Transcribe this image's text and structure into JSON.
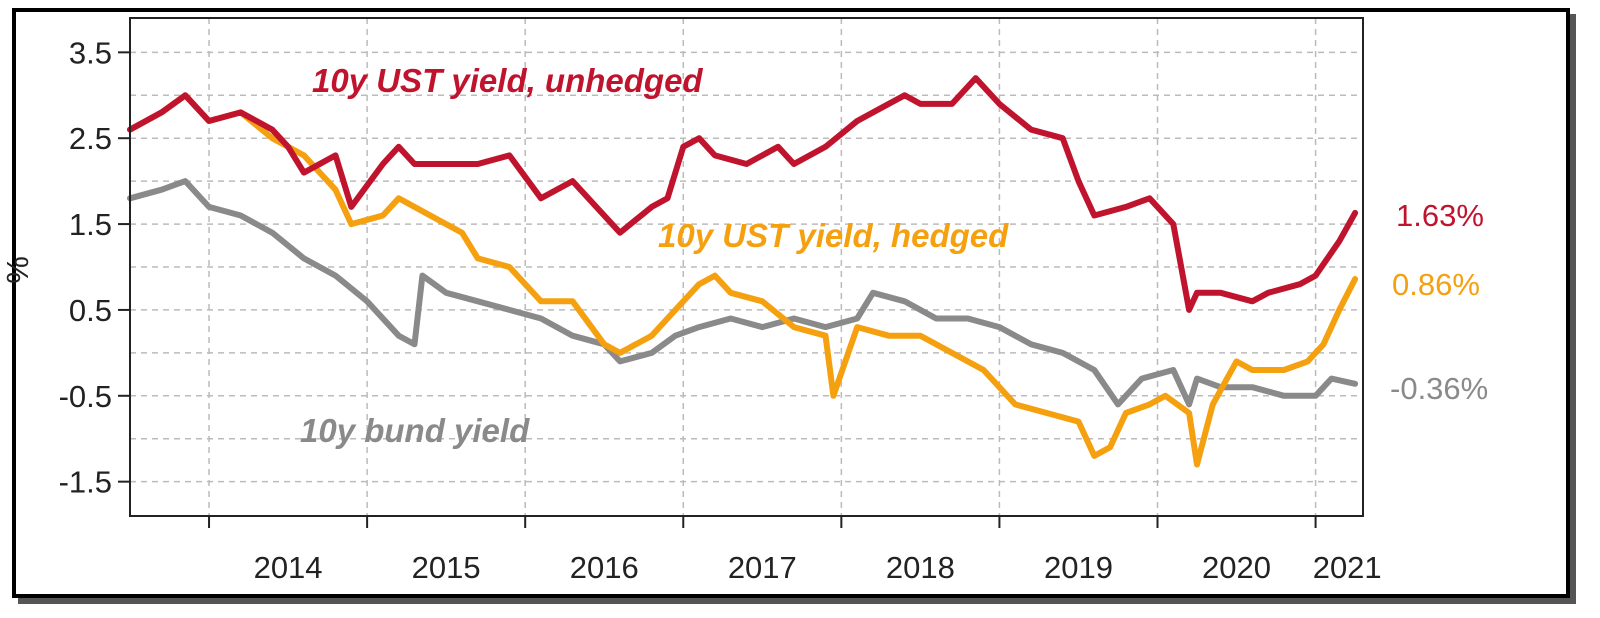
{
  "chart_data": {
    "type": "line",
    "title": "",
    "xlabel": "",
    "ylabel": "%",
    "ylim": [
      -1.9,
      3.9
    ],
    "xlim": [
      2013.5,
      2021.3
    ],
    "grid": true,
    "y_ticks": [
      "3.5",
      "2.5",
      "1.5",
      "0.5",
      "-0.5",
      "-1.5"
    ],
    "x_ticks": [
      "2014",
      "2015",
      "2016",
      "2017",
      "2018",
      "2019",
      "2020",
      "2021"
    ],
    "series": [
      {
        "name": "10y UST yield, unhedged",
        "color": "#c0142e",
        "end_label": "1.63%",
        "x": [
          2013.5,
          2013.7,
          2013.85,
          2014.0,
          2014.2,
          2014.4,
          2014.5,
          2014.6,
          2014.8,
          2014.9,
          2015.1,
          2015.2,
          2015.3,
          2015.5,
          2015.7,
          2015.9,
          2016.1,
          2016.3,
          2016.5,
          2016.6,
          2016.8,
          2016.9,
          2017.0,
          2017.1,
          2017.2,
          2017.4,
          2017.6,
          2017.7,
          2017.9,
          2018.1,
          2018.2,
          2018.4,
          2018.5,
          2018.7,
          2018.85,
          2019.0,
          2019.2,
          2019.4,
          2019.5,
          2019.6,
          2019.8,
          2019.95,
          2020.1,
          2020.2,
          2020.25,
          2020.4,
          2020.6,
          2020.7,
          2020.9,
          2021.0,
          2021.15,
          2021.25
        ],
        "y": [
          2.6,
          2.8,
          3.0,
          2.7,
          2.8,
          2.6,
          2.4,
          2.1,
          2.3,
          1.7,
          2.2,
          2.4,
          2.2,
          2.2,
          2.2,
          2.3,
          1.8,
          2.0,
          1.6,
          1.4,
          1.7,
          1.8,
          2.4,
          2.5,
          2.3,
          2.2,
          2.4,
          2.2,
          2.4,
          2.7,
          2.8,
          3.0,
          2.9,
          2.9,
          3.2,
          2.9,
          2.6,
          2.5,
          2.0,
          1.6,
          1.7,
          1.8,
          1.5,
          0.5,
          0.7,
          0.7,
          0.6,
          0.7,
          0.8,
          0.9,
          1.3,
          1.63
        ]
      },
      {
        "name": "10y UST yield, hedged",
        "color": "#f5a00f",
        "end_label": "0.86%",
        "x": [
          2013.5,
          2013.7,
          2013.85,
          2014.0,
          2014.2,
          2014.4,
          2014.6,
          2014.8,
          2014.9,
          2015.1,
          2015.2,
          2015.4,
          2015.6,
          2015.7,
          2015.9,
          2016.1,
          2016.3,
          2016.5,
          2016.6,
          2016.8,
          2016.95,
          2017.1,
          2017.2,
          2017.3,
          2017.5,
          2017.7,
          2017.9,
          2017.95,
          2018.1,
          2018.3,
          2018.5,
          2018.7,
          2018.9,
          2019.1,
          2019.3,
          2019.5,
          2019.6,
          2019.7,
          2019.8,
          2019.95,
          2020.05,
          2020.2,
          2020.25,
          2020.35,
          2020.5,
          2020.6,
          2020.8,
          2020.95,
          2021.05,
          2021.15,
          2021.25
        ],
        "y": [
          2.6,
          2.8,
          3.0,
          2.7,
          2.8,
          2.5,
          2.3,
          1.9,
          1.5,
          1.6,
          1.8,
          1.6,
          1.4,
          1.1,
          1.0,
          0.6,
          0.6,
          0.1,
          0.0,
          0.2,
          0.5,
          0.8,
          0.9,
          0.7,
          0.6,
          0.3,
          0.2,
          -0.5,
          0.3,
          0.2,
          0.2,
          0.0,
          -0.2,
          -0.6,
          -0.7,
          -0.8,
          -1.2,
          -1.1,
          -0.7,
          -0.6,
          -0.5,
          -0.7,
          -1.3,
          -0.6,
          -0.1,
          -0.2,
          -0.2,
          -0.1,
          0.1,
          0.5,
          0.86
        ]
      },
      {
        "name": "10y bund yield",
        "color": "#8a8a8a",
        "end_label": "-0.36%",
        "x": [
          2013.5,
          2013.7,
          2013.85,
          2014.0,
          2014.2,
          2014.4,
          2014.6,
          2014.8,
          2015.0,
          2015.2,
          2015.3,
          2015.35,
          2015.5,
          2015.7,
          2015.9,
          2016.1,
          2016.3,
          2016.5,
          2016.6,
          2016.8,
          2016.95,
          2017.1,
          2017.3,
          2017.5,
          2017.7,
          2017.9,
          2018.1,
          2018.2,
          2018.4,
          2018.6,
          2018.8,
          2019.0,
          2019.2,
          2019.4,
          2019.6,
          2019.75,
          2019.9,
          2020.1,
          2020.2,
          2020.25,
          2020.4,
          2020.6,
          2020.8,
          2021.0,
          2021.1,
          2021.25
        ],
        "y": [
          1.8,
          1.9,
          2.0,
          1.7,
          1.6,
          1.4,
          1.1,
          0.9,
          0.6,
          0.2,
          0.1,
          0.9,
          0.7,
          0.6,
          0.5,
          0.4,
          0.2,
          0.1,
          -0.1,
          0.0,
          0.2,
          0.3,
          0.4,
          0.3,
          0.4,
          0.3,
          0.4,
          0.7,
          0.6,
          0.4,
          0.4,
          0.3,
          0.1,
          0.0,
          -0.2,
          -0.6,
          -0.3,
          -0.2,
          -0.6,
          -0.3,
          -0.4,
          -0.4,
          -0.5,
          -0.5,
          -0.3,
          -0.36
        ]
      }
    ]
  }
}
